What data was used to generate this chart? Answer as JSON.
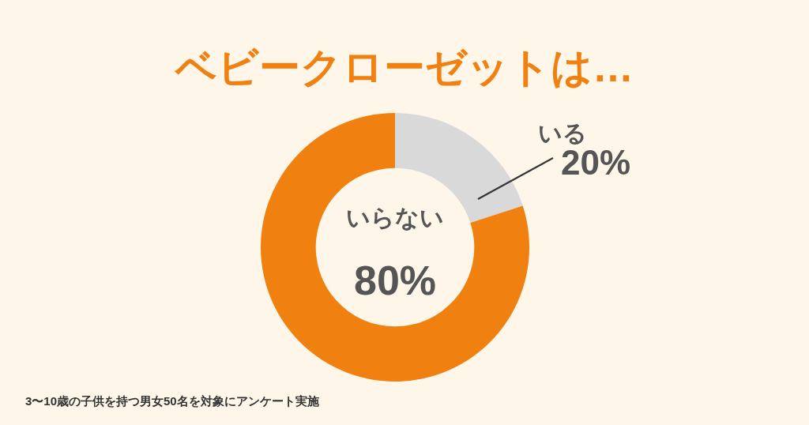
{
  "chart_data": {
    "type": "donut",
    "title": "ベビークローゼットは…",
    "categories": [
      "いる",
      "いらない"
    ],
    "values": [
      20,
      80
    ],
    "colors": [
      "#d9d9d9",
      "#f08010"
    ],
    "value_labels": [
      "20%",
      "80%"
    ],
    "annotations": [
      "3〜10歳の子供を持つ男女50名を対象にアンケート実施"
    ],
    "legend": false
  }
}
